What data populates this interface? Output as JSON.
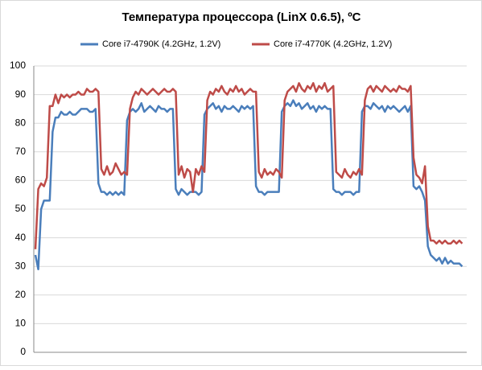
{
  "chart_data": {
    "type": "line",
    "title": "Температура процессора (LinX 0.6.5), ºC",
    "ylim": [
      0,
      100
    ],
    "yticks": [
      0,
      10,
      20,
      30,
      40,
      50,
      60,
      70,
      80,
      90,
      100
    ],
    "grid": true,
    "legend": "top",
    "series": [
      {
        "name": "Core i7-4790K (4.2GHz, 1.2V)",
        "color": "#4a7ebb",
        "values": [
          34,
          29,
          50,
          53,
          53,
          53,
          77,
          82,
          82,
          84,
          83,
          83,
          84,
          83,
          83,
          84,
          85,
          85,
          85,
          84,
          84,
          85,
          59,
          56,
          56,
          55,
          56,
          55,
          56,
          55,
          56,
          55,
          81,
          84,
          85,
          84,
          85,
          87,
          84,
          85,
          86,
          85,
          84,
          86,
          85,
          85,
          84,
          85,
          85,
          57,
          55,
          57,
          56,
          55,
          56,
          56,
          56,
          55,
          56,
          83,
          85,
          86,
          87,
          85,
          86,
          84,
          86,
          85,
          85,
          86,
          85,
          84,
          86,
          85,
          86,
          85,
          86,
          58,
          56,
          56,
          55,
          56,
          56,
          56,
          56,
          56,
          84,
          86,
          87,
          86,
          88,
          86,
          87,
          85,
          86,
          87,
          85,
          86,
          84,
          86,
          85,
          86,
          85,
          85,
          57,
          56,
          56,
          55,
          56,
          56,
          56,
          55,
          56,
          56,
          84,
          86,
          86,
          85,
          87,
          86,
          85,
          86,
          84,
          86,
          85,
          86,
          85,
          84,
          85,
          86,
          84,
          86,
          58,
          57,
          58,
          56,
          53,
          37,
          34,
          33,
          32,
          33,
          31,
          33,
          31,
          32,
          31,
          31,
          31,
          30
        ]
      },
      {
        "name": "Core i7-4770K (4.2GHz, 1.2V)",
        "color": "#be4b48",
        "values": [
          36,
          57,
          59,
          58,
          61,
          86,
          86,
          90,
          87,
          90,
          89,
          90,
          89,
          90,
          90,
          91,
          90,
          90,
          92,
          91,
          91,
          92,
          91,
          64,
          62,
          65,
          62,
          63,
          66,
          64,
          62,
          63,
          62,
          85,
          89,
          91,
          90,
          92,
          91,
          90,
          91,
          92,
          91,
          90,
          91,
          92,
          91,
          91,
          92,
          91,
          62,
          65,
          61,
          64,
          63,
          56,
          64,
          62,
          65,
          63,
          88,
          91,
          90,
          92,
          91,
          93,
          91,
          90,
          92,
          91,
          93,
          91,
          92,
          90,
          91,
          92,
          91,
          91,
          63,
          61,
          64,
          62,
          63,
          62,
          64,
          63,
          61,
          88,
          91,
          92,
          93,
          91,
          94,
          92,
          91,
          93,
          92,
          94,
          91,
          93,
          92,
          94,
          91,
          92,
          93,
          63,
          62,
          61,
          64,
          62,
          61,
          63,
          62,
          64,
          62,
          88,
          92,
          93,
          91,
          93,
          92,
          91,
          93,
          92,
          91,
          92,
          91,
          93,
          92,
          92,
          91,
          93,
          68,
          62,
          61,
          59,
          65,
          44,
          39,
          39,
          38,
          39,
          38,
          39,
          38,
          38,
          39,
          38,
          39,
          38
        ]
      }
    ]
  }
}
